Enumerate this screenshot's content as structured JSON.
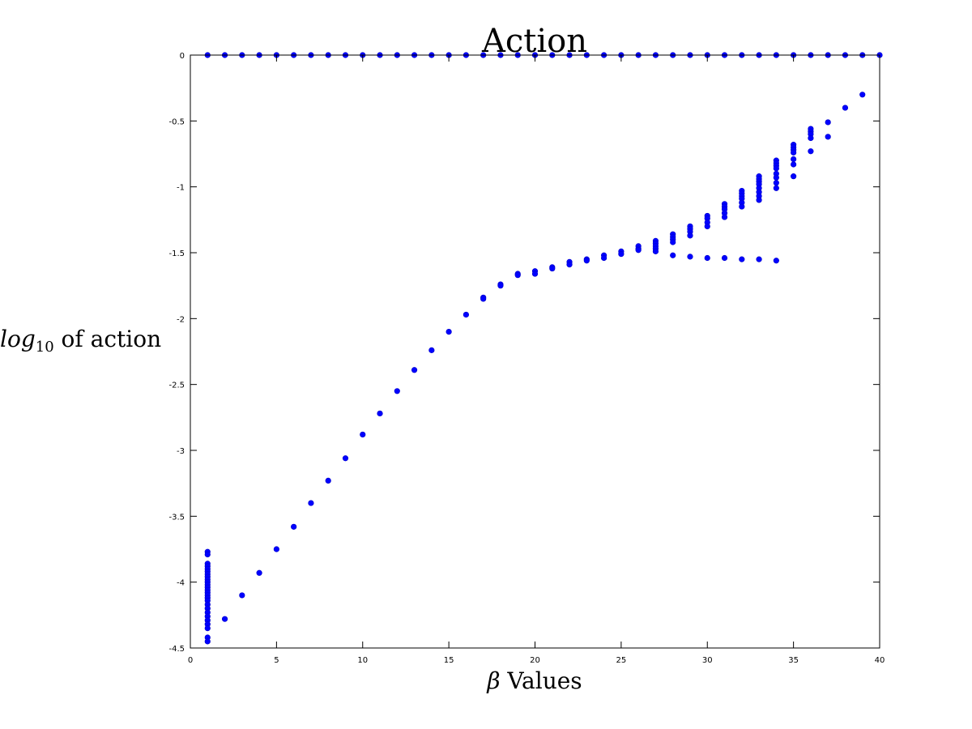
{
  "chart_data": {
    "type": "scatter",
    "title": "Action",
    "xlabel": "β Values",
    "ylabel": "log10 of action",
    "ylabel_parts": {
      "main": "log",
      "sub": "10",
      "rest": " of action"
    },
    "xlim": [
      0,
      40
    ],
    "ylim": [
      -4.5,
      0
    ],
    "grid": false,
    "legend": "none",
    "x_ticks": [
      0,
      5,
      10,
      15,
      20,
      25,
      30,
      35,
      40
    ],
    "x_tick_labels": [
      "0",
      "5",
      "10",
      "15",
      "20",
      "25",
      "30",
      "35",
      "40"
    ],
    "y_ticks": [
      0,
      -0.5,
      -1,
      -1.5,
      -2,
      -2.5,
      -3,
      -3.5,
      -4,
      -4.5
    ],
    "y_tick_labels": [
      "0",
      "-0.5",
      "-1",
      "-1.5",
      "-2",
      "-2.5",
      "-3",
      "-3.5",
      "-4",
      "-4.5"
    ],
    "marker_color": "#0000ff",
    "points": [
      [
        1,
        0
      ],
      [
        2,
        0
      ],
      [
        3,
        0
      ],
      [
        4,
        0
      ],
      [
        5,
        0
      ],
      [
        6,
        0
      ],
      [
        7,
        0
      ],
      [
        8,
        0
      ],
      [
        9,
        0
      ],
      [
        10,
        0
      ],
      [
        11,
        0
      ],
      [
        12,
        0
      ],
      [
        13,
        0
      ],
      [
        14,
        0
      ],
      [
        15,
        0
      ],
      [
        16,
        0
      ],
      [
        17,
        0
      ],
      [
        18,
        0
      ],
      [
        19,
        0
      ],
      [
        20,
        0
      ],
      [
        21,
        0
      ],
      [
        22,
        0
      ],
      [
        23,
        0
      ],
      [
        24,
        0
      ],
      [
        25,
        0
      ],
      [
        26,
        0
      ],
      [
        27,
        0
      ],
      [
        28,
        0
      ],
      [
        29,
        0
      ],
      [
        30,
        0
      ],
      [
        31,
        0
      ],
      [
        32,
        0
      ],
      [
        33,
        0
      ],
      [
        34,
        0
      ],
      [
        35,
        0
      ],
      [
        36,
        0
      ],
      [
        37,
        0
      ],
      [
        38,
        0
      ],
      [
        39,
        0
      ],
      [
        40,
        0
      ],
      [
        1,
        -3.77
      ],
      [
        1,
        -3.79
      ],
      [
        1,
        -3.86
      ],
      [
        1,
        -3.88
      ],
      [
        1,
        -3.9
      ],
      [
        1,
        -3.92
      ],
      [
        1,
        -3.94
      ],
      [
        1,
        -3.96
      ],
      [
        1,
        -3.98
      ],
      [
        1,
        -4.0
      ],
      [
        1,
        -4.02
      ],
      [
        1,
        -4.04
      ],
      [
        1,
        -4.06
      ],
      [
        1,
        -4.08
      ],
      [
        1,
        -4.1
      ],
      [
        1,
        -4.12
      ],
      [
        1,
        -4.14
      ],
      [
        1,
        -4.17
      ],
      [
        1,
        -4.2
      ],
      [
        1,
        -4.23
      ],
      [
        1,
        -4.26
      ],
      [
        1,
        -4.29
      ],
      [
        1,
        -4.32
      ],
      [
        1,
        -4.35
      ],
      [
        1,
        -4.42
      ],
      [
        1,
        -4.45
      ],
      [
        2,
        -4.28
      ],
      [
        3,
        -4.1
      ],
      [
        4,
        -3.93
      ],
      [
        5,
        -3.75
      ],
      [
        6,
        -3.58
      ],
      [
        7,
        -3.4
      ],
      [
        8,
        -3.23
      ],
      [
        9,
        -3.06
      ],
      [
        10,
        -2.88
      ],
      [
        11,
        -2.72
      ],
      [
        12,
        -2.55
      ],
      [
        13,
        -2.39
      ],
      [
        14,
        -2.24
      ],
      [
        15,
        -2.1
      ],
      [
        16,
        -1.97
      ],
      [
        17,
        -1.84
      ],
      [
        17,
        -1.85
      ],
      [
        18,
        -1.74
      ],
      [
        18,
        -1.75
      ],
      [
        19,
        -1.66
      ],
      [
        19,
        -1.67
      ],
      [
        20,
        -1.64
      ],
      [
        20,
        -1.66
      ],
      [
        21,
        -1.61
      ],
      [
        21,
        -1.62
      ],
      [
        22,
        -1.57
      ],
      [
        22,
        -1.59
      ],
      [
        23,
        -1.55
      ],
      [
        23,
        -1.56
      ],
      [
        24,
        -1.52
      ],
      [
        24,
        -1.54
      ],
      [
        25,
        -1.49
      ],
      [
        25,
        -1.51
      ],
      [
        26,
        -1.45
      ],
      [
        26,
        -1.47
      ],
      [
        26,
        -1.48
      ],
      [
        27,
        -1.41
      ],
      [
        27,
        -1.43
      ],
      [
        27,
        -1.45
      ],
      [
        27,
        -1.47
      ],
      [
        27,
        -1.49
      ],
      [
        28,
        -1.36
      ],
      [
        28,
        -1.38
      ],
      [
        28,
        -1.4
      ],
      [
        28,
        -1.42
      ],
      [
        28,
        -1.52
      ],
      [
        29,
        -1.3
      ],
      [
        29,
        -1.32
      ],
      [
        29,
        -1.34
      ],
      [
        29,
        -1.37
      ],
      [
        29,
        -1.53
      ],
      [
        30,
        -1.22
      ],
      [
        30,
        -1.24
      ],
      [
        30,
        -1.27
      ],
      [
        30,
        -1.3
      ],
      [
        30,
        -1.54
      ],
      [
        31,
        -1.13
      ],
      [
        31,
        -1.15
      ],
      [
        31,
        -1.17
      ],
      [
        31,
        -1.2
      ],
      [
        31,
        -1.23
      ],
      [
        31,
        -1.54
      ],
      [
        32,
        -1.03
      ],
      [
        32,
        -1.05
      ],
      [
        32,
        -1.07
      ],
      [
        32,
        -1.09
      ],
      [
        32,
        -1.12
      ],
      [
        32,
        -1.15
      ],
      [
        32,
        -1.55
      ],
      [
        33,
        -0.92
      ],
      [
        33,
        -0.94
      ],
      [
        33,
        -0.96
      ],
      [
        33,
        -0.98
      ],
      [
        33,
        -1.01
      ],
      [
        33,
        -1.04
      ],
      [
        33,
        -1.07
      ],
      [
        33,
        -1.1
      ],
      [
        33,
        -1.55
      ],
      [
        34,
        -0.8
      ],
      [
        34,
        -0.82
      ],
      [
        34,
        -0.84
      ],
      [
        34,
        -0.86
      ],
      [
        34,
        -0.9
      ],
      [
        34,
        -0.93
      ],
      [
        34,
        -0.97
      ],
      [
        34,
        -1.01
      ],
      [
        34,
        -1.56
      ],
      [
        35,
        -0.68
      ],
      [
        35,
        -0.7
      ],
      [
        35,
        -0.72
      ],
      [
        35,
        -0.74
      ],
      [
        35,
        -0.79
      ],
      [
        35,
        -0.83
      ],
      [
        35,
        -0.92
      ],
      [
        36,
        -0.56
      ],
      [
        36,
        -0.58
      ],
      [
        36,
        -0.6
      ],
      [
        36,
        -0.63
      ],
      [
        36,
        -0.73
      ],
      [
        37,
        -0.51
      ],
      [
        37,
        -0.62
      ],
      [
        38,
        -0.4
      ],
      [
        39,
        -0.3
      ]
    ]
  }
}
